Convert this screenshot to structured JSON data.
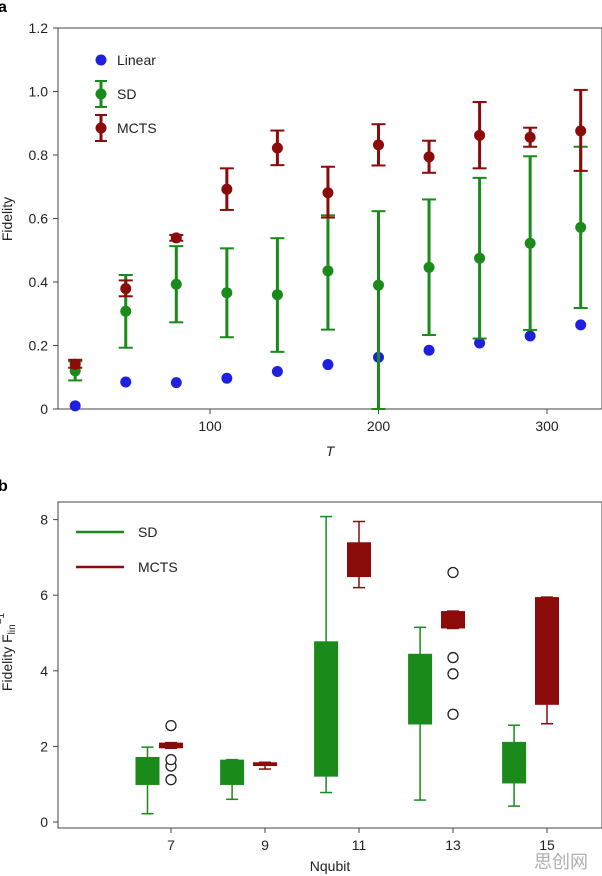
{
  "colors": {
    "linear": "#1f1fe0",
    "sd": "#1a8a1a",
    "mcts": "#8b0a0a",
    "axis": "#444444",
    "text": "#222222"
  },
  "watermark": "思创网",
  "chart_data": [
    {
      "panel": "a",
      "type": "scatter",
      "xlabel": "T",
      "ylabel": "Fidelity",
      "xlim": [
        8,
        335
      ],
      "ylim": [
        0,
        1.2
      ],
      "xticks": [
        100,
        200,
        300
      ],
      "yticks": [
        "0",
        "0.2",
        "0.4",
        "0.6",
        "0.8",
        "1.0",
        "1.2"
      ],
      "grid": false,
      "legend_position": "top-left",
      "x": [
        20,
        50,
        80,
        110,
        140,
        170,
        200,
        230,
        260,
        290,
        320
      ],
      "series": [
        {
          "name": "Linear",
          "color_key": "linear",
          "errorbars": false,
          "y": [
            0.01,
            0.085,
            0.083,
            0.097,
            0.118,
            0.14,
            0.163,
            0.185,
            0.208,
            0.23,
            0.265
          ]
        },
        {
          "name": "SD",
          "color_key": "sd",
          "errorbars": true,
          "y": [
            0.12,
            0.308,
            0.393,
            0.366,
            0.36,
            0.435,
            0.39,
            0.446,
            0.475,
            0.522,
            0.572
          ],
          "err_low": [
            0.09,
            0.193,
            0.273,
            0.226,
            0.18,
            0.25,
            0.0,
            0.233,
            0.222,
            0.249,
            0.318
          ],
          "err_high": [
            0.15,
            0.422,
            0.513,
            0.506,
            0.538,
            0.61,
            0.623,
            0.66,
            0.728,
            0.796,
            0.826
          ]
        },
        {
          "name": "MCTS",
          "color_key": "mcts",
          "errorbars": true,
          "y": [
            0.141,
            0.379,
            0.539,
            0.692,
            0.822,
            0.681,
            0.832,
            0.794,
            0.862,
            0.856,
            0.876
          ],
          "err_low": [
            0.13,
            0.355,
            0.53,
            0.627,
            0.768,
            0.603,
            0.767,
            0.744,
            0.758,
            0.826,
            0.75
          ],
          "err_high": [
            0.155,
            0.405,
            0.548,
            0.758,
            0.877,
            0.763,
            0.897,
            0.845,
            0.967,
            0.886,
            1.005
          ]
        }
      ]
    },
    {
      "panel": "b",
      "type": "box",
      "xlabel": "Nqubit",
      "ylabel_main": "Fidelity F",
      "ylabel_sub": "lin",
      "ylabel_sup": "−1",
      "xlim": [
        5.0,
        16.2
      ],
      "ylim": [
        -0.2,
        8.4
      ],
      "xticks": [
        7,
        9,
        11,
        13,
        15
      ],
      "yticks": [
        "0",
        "2",
        "4",
        "6",
        "8"
      ],
      "grid": false,
      "legend_position": "top-left",
      "series": [
        {
          "name": "SD",
          "color_key": "sd",
          "boxes": [
            {
              "x": 6.5,
              "whisker_low": 0.22,
              "q1": 0.98,
              "median": 0.98,
              "q3": 1.72,
              "whisker_high": 1.98,
              "outliers": []
            },
            {
              "x": 8.3,
              "whisker_low": 0.6,
              "q1": 0.98,
              "median": 0.98,
              "q3": 1.65,
              "whisker_high": 1.65,
              "outliers": []
            },
            {
              "x": 10.3,
              "whisker_low": 0.78,
              "q1": 1.2,
              "median": 1.2,
              "q3": 4.78,
              "whisker_high": 8.08,
              "outliers": []
            },
            {
              "x": 12.3,
              "whisker_low": 0.58,
              "q1": 2.58,
              "median": 2.58,
              "q3": 4.45,
              "whisker_high": 5.15,
              "outliers": []
            },
            {
              "x": 14.3,
              "whisker_low": 0.42,
              "q1": 1.02,
              "median": 1.02,
              "q3": 2.12,
              "whisker_high": 2.56,
              "outliers": []
            }
          ]
        },
        {
          "name": "MCTS",
          "color_key": "mcts",
          "boxes": [
            {
              "x": 7.0,
              "whisker_low": 1.95,
              "q1": 1.95,
              "median": 1.95,
              "q3": 2.1,
              "whisker_high": 2.1,
              "outliers": [
                1.12,
                1.48,
                1.65,
                2.55
              ]
            },
            {
              "x": 9.0,
              "whisker_low": 1.4,
              "q1": 1.48,
              "median": 1.48,
              "q3": 1.58,
              "whisker_high": 1.58,
              "outliers": []
            },
            {
              "x": 11.0,
              "whisker_low": 6.2,
              "q1": 6.48,
              "median": 6.48,
              "q3": 7.4,
              "whisker_high": 7.95,
              "outliers": []
            },
            {
              "x": 13.0,
              "whisker_low": 5.12,
              "q1": 5.12,
              "median": 5.12,
              "q3": 5.58,
              "whisker_high": 5.58,
              "outliers": [
                2.85,
                3.92,
                4.35,
                6.6
              ]
            },
            {
              "x": 15.0,
              "whisker_low": 2.6,
              "q1": 3.1,
              "median": 3.1,
              "q3": 5.95,
              "whisker_high": 5.95,
              "outliers": []
            }
          ]
        }
      ]
    }
  ]
}
